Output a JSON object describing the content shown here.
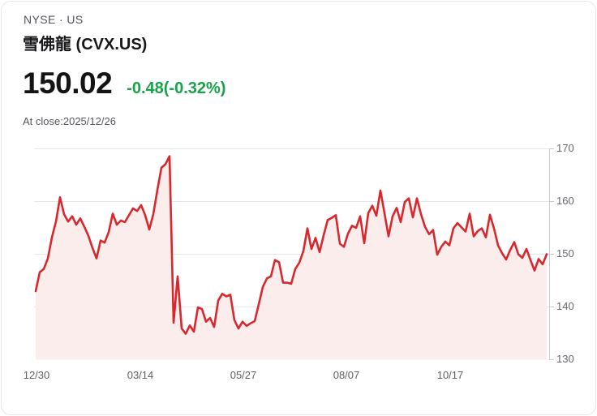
{
  "header": {
    "market": "NYSE · US",
    "title": "雪佛龍 (CVX.US)",
    "price": "150.02",
    "change": "-0.48(-0.32%)",
    "as_of": "At close:2025/12/26"
  },
  "colors": {
    "line": "#d7282e",
    "fill": "#fceded",
    "change_green": "#16a34a",
    "grid": "#e7e7ea",
    "axis": "#c9c9ce"
  },
  "chart_data": {
    "type": "area",
    "title": "CVX.US one-year closing price",
    "xlabel": "",
    "ylabel": "",
    "ylim": [
      130,
      170
    ],
    "grid": true,
    "legend": "none",
    "x_ticks": [
      "12/30",
      "03/14",
      "05/27",
      "08/07",
      "10/17"
    ],
    "y_ticks": [
      "170",
      "160",
      "150",
      "140",
      "130"
    ],
    "values": [
      143.0,
      146.6,
      147.2,
      149.2,
      153.2,
      156.2,
      160.8,
      157.6,
      156.2,
      157.2,
      155.6,
      156.8,
      155.2,
      153.5,
      151.2,
      149.2,
      152.6,
      152.2,
      154.2,
      157.7,
      155.6,
      156.4,
      156.1,
      157.4,
      158.7,
      158.2,
      159.3,
      157.4,
      154.7,
      157.6,
      162.2,
      166.4,
      167.1,
      168.6,
      137.0,
      145.8,
      135.9,
      134.9,
      136.5,
      135.3,
      139.9,
      139.6,
      137.2,
      137.9,
      136.2,
      141.2,
      142.5,
      142.0,
      142.3,
      137.5,
      135.9,
      137.2,
      136.4,
      136.9,
      137.3,
      140.5,
      143.8,
      145.4,
      145.8,
      148.9,
      148.5,
      144.6,
      144.6,
      144.4,
      147.2,
      148.4,
      150.6,
      154.9,
      151.0,
      153.1,
      150.4,
      153.6,
      156.5,
      156.9,
      157.4,
      152.0,
      151.4,
      153.9,
      155.4,
      155.0,
      157.2,
      152.1,
      157.8,
      159.2,
      157.3,
      162.1,
      157.8,
      153.4,
      157.2,
      158.8,
      156.1,
      159.9,
      160.6,
      157.0,
      160.6,
      157.6,
      155.2,
      153.8,
      154.6,
      149.9,
      151.4,
      152.4,
      151.7,
      154.9,
      155.9,
      155.1,
      154.3,
      157.7,
      153.4,
      154.4,
      154.9,
      153.2,
      157.5,
      154.9,
      151.7,
      150.2,
      149.0,
      150.8,
      152.3,
      150.0,
      149.3,
      151.0,
      148.9,
      146.9,
      149.1,
      148.1,
      150.0
    ]
  }
}
